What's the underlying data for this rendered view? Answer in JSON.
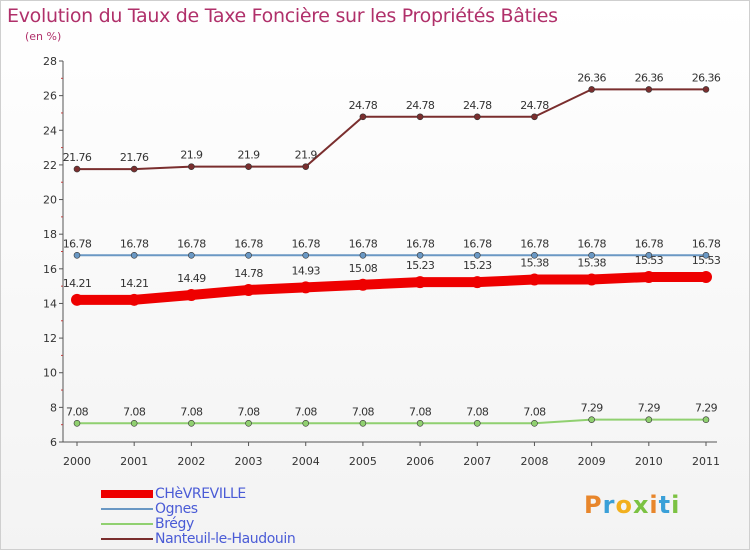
{
  "header": {
    "title": "Evolution du Taux de Taxe Foncière sur les Propriétés Bâties",
    "subtitle": "(en %)"
  },
  "logo": {
    "letters": [
      "P",
      "r",
      "o",
      "x",
      "i",
      "t",
      "i"
    ],
    "colors": [
      "#e8862b",
      "#3aa0d8",
      "#f2b01e",
      "#7cc242",
      "#e8862b",
      "#3aa0d8",
      "#7cc242"
    ]
  },
  "chart_data": {
    "type": "line",
    "categories": [
      "2000",
      "2001",
      "2002",
      "2003",
      "2004",
      "2005",
      "2006",
      "2007",
      "2008",
      "2009",
      "2010",
      "2011"
    ],
    "ylim": [
      6,
      28
    ],
    "y_ticks": [
      "6",
      "8",
      "10",
      "12",
      "14",
      "16",
      "18",
      "20",
      "22",
      "24",
      "26",
      "28"
    ],
    "grid": false,
    "legend_position": "bottom-left",
    "series": [
      {
        "name": "Nanteuil-le-Haudouin",
        "color": "#7a2e2e",
        "values": [
          21.76,
          21.76,
          21.9,
          21.9,
          21.9,
          24.78,
          24.78,
          24.78,
          24.78,
          26.36,
          26.36,
          26.36
        ],
        "labels": [
          "21.76",
          "21.76",
          "21.9",
          "21.9",
          "21.9",
          "24.78",
          "24.78",
          "24.78",
          "24.78",
          "26.36",
          "26.36",
          "26.36"
        ]
      },
      {
        "name": "Ognes",
        "color": "#6a98c4",
        "values": [
          16.78,
          16.78,
          16.78,
          16.78,
          16.78,
          16.78,
          16.78,
          16.78,
          16.78,
          16.78,
          16.78,
          16.78
        ],
        "labels": [
          "16.78",
          "16.78",
          "16.78",
          "16.78",
          "16.78",
          "16.78",
          "16.78",
          "16.78",
          "16.78",
          "16.78",
          "16.78",
          "16.78"
        ]
      },
      {
        "name": "CHèVREVILLE",
        "color": "#ee0000",
        "values": [
          14.21,
          14.21,
          14.49,
          14.78,
          14.93,
          15.08,
          15.23,
          15.23,
          15.38,
          15.38,
          15.53,
          15.53
        ],
        "labels": [
          "14.21",
          "14.21",
          "14.49",
          "14.78",
          "14.93",
          "15.08",
          "15.23",
          "15.23",
          "15.38",
          "15.38",
          "15.53",
          "15.53"
        ]
      },
      {
        "name": "Brégy",
        "color": "#90d070",
        "values": [
          7.08,
          7.08,
          7.08,
          7.08,
          7.08,
          7.08,
          7.08,
          7.08,
          7.08,
          7.29,
          7.29,
          7.29
        ],
        "labels": [
          "7.08",
          "7.08",
          "7.08",
          "7.08",
          "7.08",
          "7.08",
          "7.08",
          "7.08",
          "7.08",
          "7.29",
          "7.29",
          "7.29"
        ]
      }
    ],
    "legend_order": [
      "CHèVREVILLE",
      "Ognes",
      "Brégy",
      "Nanteuil-le-Haudouin"
    ]
  }
}
